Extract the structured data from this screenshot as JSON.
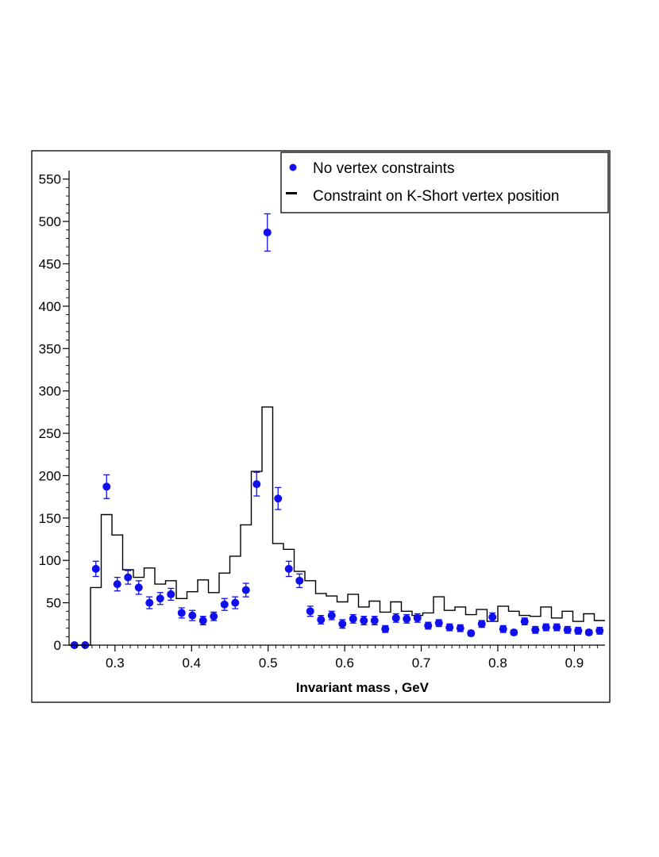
{
  "chart_data": {
    "type": "scatter",
    "xlabel": "Invariant mass , GeV",
    "ylabel": "",
    "xlim": [
      0.24,
      0.94
    ],
    "ylim": [
      0,
      560
    ],
    "x_ticks": [
      0.3,
      0.4,
      0.5,
      0.6,
      0.7,
      0.8,
      0.9
    ],
    "x_tick_labels": [
      "0.3",
      "0.4",
      "0.5",
      "0.6",
      "0.7",
      "0.8",
      "0.9"
    ],
    "y_ticks": [
      0,
      50,
      100,
      150,
      200,
      250,
      300,
      350,
      400,
      450,
      500,
      550
    ],
    "y_tick_labels": [
      "0",
      "50",
      "100",
      "150",
      "200",
      "250",
      "300",
      "350",
      "400",
      "450",
      "500",
      "550"
    ],
    "grid": false,
    "legend_position": "top-right",
    "series": [
      {
        "name": "No vertex constraints",
        "kind": "points_with_errors",
        "color": "#1010ee",
        "x": [
          0.247,
          0.261,
          0.275,
          0.289,
          0.303,
          0.317,
          0.331,
          0.345,
          0.359,
          0.373,
          0.387,
          0.401,
          0.415,
          0.429,
          0.443,
          0.457,
          0.471,
          0.485,
          0.499,
          0.513,
          0.527,
          0.541,
          0.555,
          0.569,
          0.583,
          0.597,
          0.611,
          0.625,
          0.639,
          0.653,
          0.667,
          0.681,
          0.695,
          0.709,
          0.723,
          0.737,
          0.751,
          0.765,
          0.779,
          0.793,
          0.807,
          0.821,
          0.835,
          0.849,
          0.863,
          0.877,
          0.891,
          0.905,
          0.919,
          0.933
        ],
        "y": [
          0,
          0,
          90,
          187,
          72,
          80,
          68,
          50,
          55,
          60,
          38,
          35,
          29,
          34,
          48,
          50,
          65,
          190,
          487,
          173,
          90,
          76,
          40,
          30,
          35,
          25,
          31,
          29,
          29,
          19,
          32,
          31,
          32,
          23,
          26,
          21,
          20,
          14,
          25,
          33,
          19,
          15,
          28,
          18,
          21,
          21,
          18,
          17,
          15,
          17
        ],
        "err": [
          0,
          0,
          9,
          14,
          8,
          8,
          8,
          7,
          7,
          7,
          6,
          6,
          5,
          5,
          7,
          7,
          8,
          14,
          22,
          13,
          9,
          8,
          6,
          5,
          5,
          5,
          5,
          5,
          5,
          4,
          5,
          5,
          5,
          4,
          4,
          4,
          4,
          3,
          4,
          5,
          4,
          3,
          4,
          4,
          4,
          4,
          4,
          4,
          3,
          4
        ]
      },
      {
        "name": "Constraint on K-Short vertex position",
        "kind": "step",
        "color": "#000000",
        "bin_edges": [
          0.24,
          0.254,
          0.268,
          0.282,
          0.296,
          0.31,
          0.324,
          0.338,
          0.352,
          0.366,
          0.38,
          0.394,
          0.408,
          0.422,
          0.436,
          0.45,
          0.464,
          0.478,
          0.492,
          0.506,
          0.52,
          0.534,
          0.548,
          0.562,
          0.576,
          0.59,
          0.604,
          0.618,
          0.632,
          0.646,
          0.66,
          0.674,
          0.688,
          0.702,
          0.716,
          0.73,
          0.744,
          0.758,
          0.772,
          0.786,
          0.8,
          0.814,
          0.828,
          0.842,
          0.856,
          0.87,
          0.884,
          0.898,
          0.912,
          0.926,
          0.94
        ],
        "values": [
          0,
          0,
          68,
          154,
          130,
          89,
          80,
          91,
          72,
          76,
          55,
          63,
          77,
          62,
          85,
          105,
          142,
          205,
          281,
          120,
          113,
          87,
          76,
          61,
          58,
          51,
          60,
          45,
          52,
          39,
          51,
          40,
          35,
          38,
          57,
          41,
          45,
          36,
          42,
          28,
          46,
          40,
          35,
          34,
          45,
          32,
          40,
          28,
          37,
          29
        ]
      }
    ]
  }
}
